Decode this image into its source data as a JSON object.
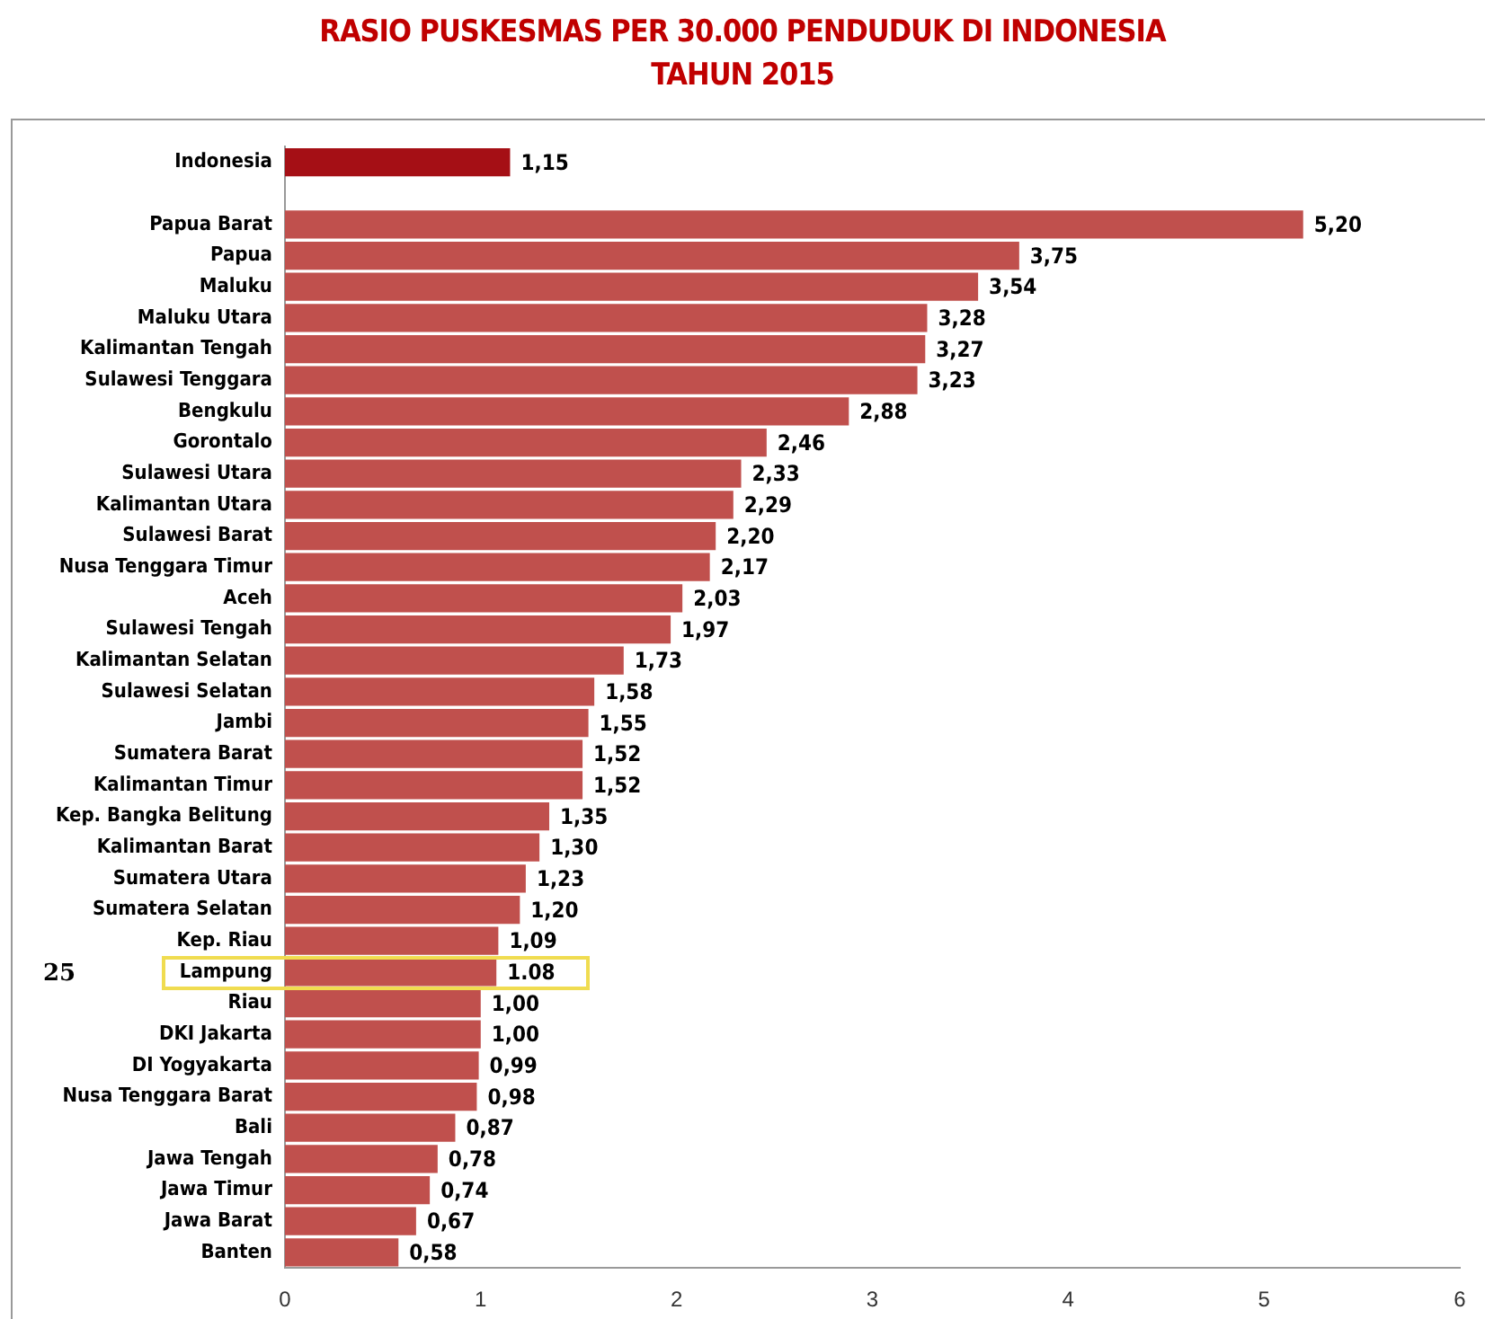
{
  "chart_data": {
    "type": "bar",
    "orientation": "horizontal",
    "title": "RASIO PUSKESMAS PER 30.000 PENDUDUK DI INDONESIA\nTAHUN 2015",
    "categories": [
      "Indonesia",
      null,
      "Papua Barat",
      "Papua",
      "Maluku",
      "Maluku Utara",
      "Kalimantan Tengah",
      "Sulawesi Tenggara",
      "Bengkulu",
      "Gorontalo",
      "Sulawesi Utara",
      "Kalimantan Utara",
      "Sulawesi Barat",
      "Nusa Tenggara Timur",
      "Aceh",
      "Sulawesi Tengah",
      "Kalimantan Selatan",
      "Sulawesi Selatan",
      "Jambi",
      "Sumatera Barat",
      "Kalimantan Timur",
      "Kep. Bangka Belitung",
      "Kalimantan Barat",
      "Sumatera Utara",
      "Sumatera Selatan",
      "Kep. Riau",
      "Lampung",
      "Riau",
      "DKI Jakarta",
      "DI Yogyakarta",
      "Nusa Tenggara Barat",
      "Bali",
      "Jawa Tengah",
      "Jawa Timur",
      "Jawa Barat",
      "Banten"
    ],
    "values": [
      1.15,
      null,
      5.2,
      3.75,
      3.54,
      3.28,
      3.27,
      3.23,
      2.88,
      2.46,
      2.33,
      2.29,
      2.2,
      2.17,
      2.03,
      1.97,
      1.73,
      1.58,
      1.55,
      1.52,
      1.52,
      1.35,
      1.3,
      1.23,
      1.2,
      1.09,
      1.08,
      1.0,
      1.0,
      0.99,
      0.98,
      0.87,
      0.78,
      0.74,
      0.67,
      0.58
    ],
    "value_labels": [
      "1,15",
      null,
      "5,20",
      "3,75",
      "3,54",
      "3,28",
      "3,27",
      "3,23",
      "2,88",
      "2,46",
      "2,33",
      "2,29",
      "2,20",
      "2,17",
      "2,03",
      "1,97",
      "1,73",
      "1,58",
      "1,55",
      "1,52",
      "1,52",
      "1,35",
      "1,30",
      "1,23",
      "1,20",
      "1,09",
      "1.08",
      "1,00",
      "1,00",
      "0,99",
      "0,98",
      "0,87",
      "0,78",
      "0,74",
      "0,67",
      "0,58"
    ],
    "colors": [
      "#a50f15",
      null,
      "#c0504d",
      "#c0504d",
      "#c0504d",
      "#c0504d",
      "#c0504d",
      "#c0504d",
      "#c0504d",
      "#c0504d",
      "#c0504d",
      "#c0504d",
      "#c0504d",
      "#c0504d",
      "#c0504d",
      "#c0504d",
      "#c0504d",
      "#c0504d",
      "#c0504d",
      "#c0504d",
      "#c0504d",
      "#c0504d",
      "#c0504d",
      "#c0504d",
      "#c0504d",
      "#c0504d",
      "#c0504d",
      "#c0504d",
      "#c0504d",
      "#c0504d",
      "#c0504d",
      "#c0504d",
      "#c0504d",
      "#c0504d",
      "#c0504d",
      "#c0504d"
    ],
    "xlim": [
      0,
      6
    ],
    "xticks": [
      0,
      1,
      2,
      3,
      4,
      5,
      6
    ],
    "grid": false,
    "legend": false,
    "annotations": [
      "25"
    ]
  }
}
